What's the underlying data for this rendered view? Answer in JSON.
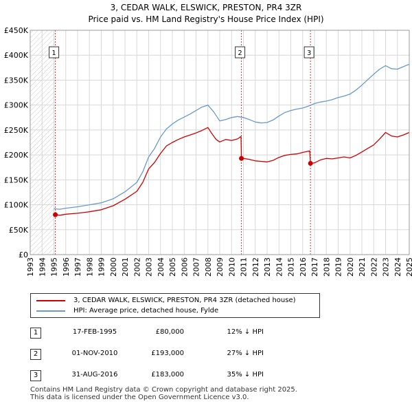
{
  "title_line1": "3, CEDAR WALK, ELSWICK, PRESTON, PR4 3ZR",
  "title_line2": "Price paid vs. HM Land Registry's House Price Index (HPI)",
  "colors": {
    "property": "#cc0000",
    "hpi": "#6699cc",
    "grid": "#d8d8d8",
    "marker_line": "#cc0000"
  },
  "chart_data": {
    "type": "line",
    "ylim": [
      0,
      450000
    ],
    "xlim": [
      1993,
      2025
    ],
    "y_ticks": [
      {
        "value": 0,
        "label": "£0"
      },
      {
        "value": 50000,
        "label": "£50K"
      },
      {
        "value": 100000,
        "label": "£100K"
      },
      {
        "value": 150000,
        "label": "£150K"
      },
      {
        "value": 200000,
        "label": "£200K"
      },
      {
        "value": 250000,
        "label": "£250K"
      },
      {
        "value": 300000,
        "label": "£300K"
      },
      {
        "value": 350000,
        "label": "£350K"
      },
      {
        "value": 400000,
        "label": "£400K"
      },
      {
        "value": 450000,
        "label": "£450K"
      }
    ],
    "x_ticks": [
      "1993",
      "1994",
      "1995",
      "1996",
      "1997",
      "1998",
      "1999",
      "2000",
      "2001",
      "2002",
      "2003",
      "2004",
      "2005",
      "2006",
      "2007",
      "2008",
      "2009",
      "2010",
      "2011",
      "2012",
      "2013",
      "2014",
      "2015",
      "2016",
      "2017",
      "2018",
      "2019",
      "2020",
      "2021",
      "2022",
      "2023",
      "2024",
      "2025"
    ],
    "grid": true,
    "hatched_region": [
      1993,
      1995.12
    ],
    "series": [
      {
        "name": "3, CEDAR WALK, ELSWICK, PRESTON, PR4 3ZR (detached house)",
        "color": "#cc0000",
        "x": [
          1995.12,
          1995.5,
          1996,
          1997,
          1998,
          1999,
          2000,
          2001,
          2002,
          2002.5,
          2003,
          2003.5,
          2004,
          2004.5,
          2005,
          2005.5,
          2006,
          2006.5,
          2007,
          2007.5,
          2008,
          2008.3,
          2008.7,
          2009,
          2009.5,
          2010,
          2010.5,
          2010.8,
          2010.83,
          2011,
          2011.5,
          2012,
          2012.5,
          2013,
          2013.5,
          2014,
          2014.5,
          2015,
          2015.5,
          2016,
          2016.6,
          2016.66,
          2017,
          2017.5,
          2018,
          2018.5,
          2019,
          2019.5,
          2020,
          2020.5,
          2021,
          2021.5,
          2022,
          2022.5,
          2023,
          2023.5,
          2024,
          2024.5,
          2025
        ],
        "y": [
          80000,
          79000,
          81000,
          83000,
          86000,
          90000,
          98000,
          111000,
          127000,
          145000,
          172000,
          185000,
          203000,
          218000,
          225000,
          231000,
          236000,
          240000,
          244000,
          249000,
          255000,
          244000,
          231000,
          226000,
          231000,
          229000,
          232000,
          237000,
          193000,
          193000,
          191000,
          188000,
          187000,
          186000,
          189000,
          195000,
          199000,
          201000,
          202000,
          205000,
          208000,
          183000,
          184000,
          190000,
          193000,
          192000,
          194000,
          196000,
          194000,
          199000,
          206000,
          213000,
          220000,
          232000,
          245000,
          238000,
          236000,
          240000,
          245000
        ]
      },
      {
        "name": "HPI: Average price, detached house, Fylde",
        "color": "#6699cc",
        "x": [
          1995,
          1995.5,
          1996,
          1997,
          1998,
          1999,
          2000,
          2001,
          2002,
          2002.5,
          2003,
          2003.5,
          2004,
          2004.5,
          2005,
          2005.5,
          2006,
          2006.5,
          2007,
          2007.5,
          2008,
          2008.5,
          2009,
          2009.5,
          2010,
          2010.5,
          2011,
          2011.5,
          2012,
          2012.5,
          2013,
          2013.5,
          2014,
          2014.5,
          2015,
          2015.5,
          2016,
          2016.5,
          2017,
          2017.5,
          2018,
          2018.5,
          2019,
          2019.5,
          2020,
          2020.5,
          2021,
          2021.5,
          2022,
          2022.5,
          2023,
          2023.5,
          2024,
          2024.5,
          2025
        ],
        "y": [
          92000,
          91000,
          93000,
          96000,
          100000,
          104000,
          112000,
          126000,
          145000,
          166000,
          196000,
          213000,
          236000,
          252000,
          262000,
          270000,
          276000,
          282000,
          289000,
          296000,
          300000,
          286000,
          268000,
          271000,
          275000,
          277000,
          275000,
          271000,
          266000,
          264000,
          265000,
          270000,
          278000,
          285000,
          289000,
          292000,
          294000,
          298000,
          303000,
          306000,
          308000,
          311000,
          315000,
          318000,
          322000,
          330000,
          340000,
          351000,
          362000,
          372000,
          379000,
          373000,
          372000,
          377000,
          382000
        ]
      }
    ],
    "markers": [
      {
        "label": "1",
        "x": 1995.12,
        "y": 80000
      },
      {
        "label": "2",
        "x": 2010.83,
        "y": 193000
      },
      {
        "label": "3",
        "x": 2016.66,
        "y": 183000
      }
    ]
  },
  "legend": [
    {
      "label": "3, CEDAR WALK, ELSWICK, PRESTON, PR4 3ZR (detached house)"
    },
    {
      "label": "HPI: Average price, detached house, Fylde"
    }
  ],
  "transactions": [
    {
      "num": "1",
      "date": "17-FEB-1995",
      "price": "£80,000",
      "hpi": "12% ↓ HPI"
    },
    {
      "num": "2",
      "date": "01-NOV-2010",
      "price": "£193,000",
      "hpi": "27% ↓ HPI"
    },
    {
      "num": "3",
      "date": "31-AUG-2016",
      "price": "£183,000",
      "hpi": "35% ↓ HPI"
    }
  ],
  "footer_line1": "Contains HM Land Registry data © Crown copyright and database right 2025.",
  "footer_line2": "This data is licensed under the Open Government Licence v3.0."
}
